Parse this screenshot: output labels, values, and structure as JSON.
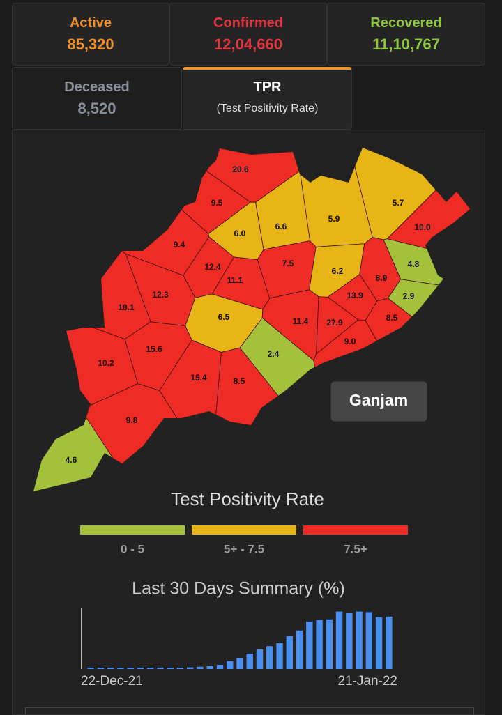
{
  "tabs": [
    {
      "title": "Active",
      "value": "85,320",
      "color": "#f0922b"
    },
    {
      "title": "Confirmed",
      "value": "12,04,660",
      "color": "#e0343f"
    },
    {
      "title": "Recovered",
      "value": "11,10,767",
      "color": "#8dc63f"
    },
    {
      "title": "Deceased",
      "value": "8,520",
      "color": "#8a9099"
    }
  ],
  "tpr_tab": {
    "title": "TPR",
    "subtitle": "(Test Positivity Rate)"
  },
  "map": {
    "tooltip": "Ganjam",
    "districts": [
      {
        "label": "20.6",
        "color": "#ee2b24"
      },
      {
        "label": "9.5",
        "color": "#ee2b24"
      },
      {
        "label": "6.0",
        "color": "#e8b517"
      },
      {
        "label": "6.6",
        "color": "#e8b517"
      },
      {
        "label": "5.9",
        "color": "#e8b517"
      },
      {
        "label": "5.7",
        "color": "#e8b517"
      },
      {
        "label": "10.0",
        "color": "#ee2b24"
      },
      {
        "label": "9.4",
        "color": "#ee2b24"
      },
      {
        "label": "12.4",
        "color": "#ee2b24"
      },
      {
        "label": "7.5",
        "color": "#ee2b24"
      },
      {
        "label": "11.1",
        "color": "#ee2b24"
      },
      {
        "label": "6.2",
        "color": "#e8b517"
      },
      {
        "label": "4.8",
        "color": "#a5c13c"
      },
      {
        "label": "8.9",
        "color": "#ee2b24"
      },
      {
        "label": "18.1",
        "color": "#ee2b24"
      },
      {
        "label": "12.3",
        "color": "#ee2b24"
      },
      {
        "label": "13.9",
        "color": "#ee2b24"
      },
      {
        "label": "2.9",
        "color": "#a5c13c"
      },
      {
        "label": "6.5",
        "color": "#e8b517"
      },
      {
        "label": "11.4",
        "color": "#ee2b24"
      },
      {
        "label": "27.9",
        "color": "#ee2b24"
      },
      {
        "label": "8.5",
        "color": "#ee2b24"
      },
      {
        "label": "9.0",
        "color": "#ee2b24"
      },
      {
        "label": "10.2",
        "color": "#ee2b24"
      },
      {
        "label": "15.6",
        "color": "#ee2b24"
      },
      {
        "label": "2.4",
        "color": "#a5c13c"
      },
      {
        "label": "15.4",
        "color": "#ee2b24"
      },
      {
        "label": "8.5",
        "color": "#ee2b24"
      },
      {
        "label": "9.8",
        "color": "#ee2b24"
      },
      {
        "label": "4.6",
        "color": "#a5c13c"
      }
    ]
  },
  "legend": {
    "title": "Test Positivity Rate",
    "items": [
      {
        "label": "0 - 5",
        "color": "#a5c13c"
      },
      {
        "label": "5+ - 7.5",
        "color": "#e8b517"
      },
      {
        "label": "7.5+",
        "color": "#ee2b24"
      }
    ]
  },
  "summary_chart": {
    "type": "bar",
    "title": "Last 30 Days Summary (%)",
    "categories": [
      "22-Dec-21",
      null,
      null,
      null,
      null,
      null,
      null,
      null,
      null,
      null,
      null,
      null,
      null,
      null,
      null,
      null,
      null,
      null,
      null,
      null,
      null,
      null,
      null,
      null,
      null,
      null,
      null,
      null,
      null,
      null,
      "21-Jan-22"
    ],
    "values": [
      0.5,
      0.5,
      0.5,
      0.5,
      0.5,
      0.5,
      0.5,
      0.5,
      0.5,
      0.5,
      0.6,
      0.8,
      1.0,
      1.5,
      2.8,
      4.0,
      5.5,
      7.0,
      8.2,
      9.3,
      11.8,
      13.8,
      17.0,
      17.6,
      17.8,
      20.6,
      20.0,
      20.6,
      20.4,
      18.6,
      18.8
    ],
    "color": "#4a8ef0",
    "ylim": [
      0,
      22
    ]
  }
}
